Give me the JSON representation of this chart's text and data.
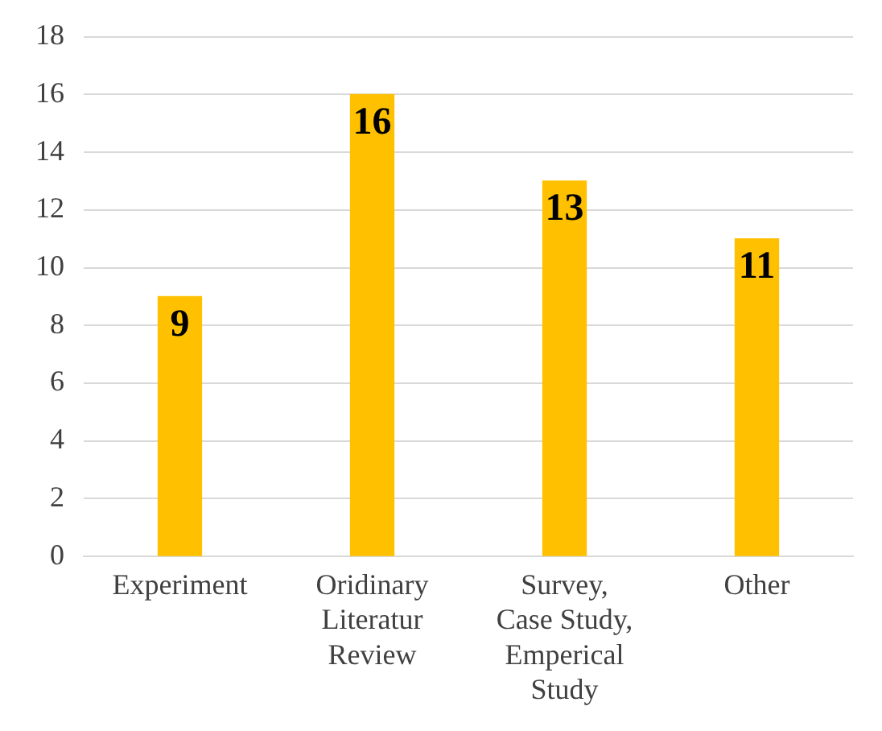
{
  "chart_data": {
    "type": "bar",
    "categories": [
      "Experiment",
      "Oridinary Literatur Review",
      "Survey, Case Study, Emperical Study",
      "Other"
    ],
    "values": [
      9,
      16,
      13,
      11
    ],
    "color": "#ffc000",
    "ylim": [
      0,
      18
    ],
    "yticks": [
      0,
      2,
      4,
      6,
      8,
      10,
      12,
      14,
      16,
      18
    ],
    "grid": "y",
    "data_labels": true
  }
}
